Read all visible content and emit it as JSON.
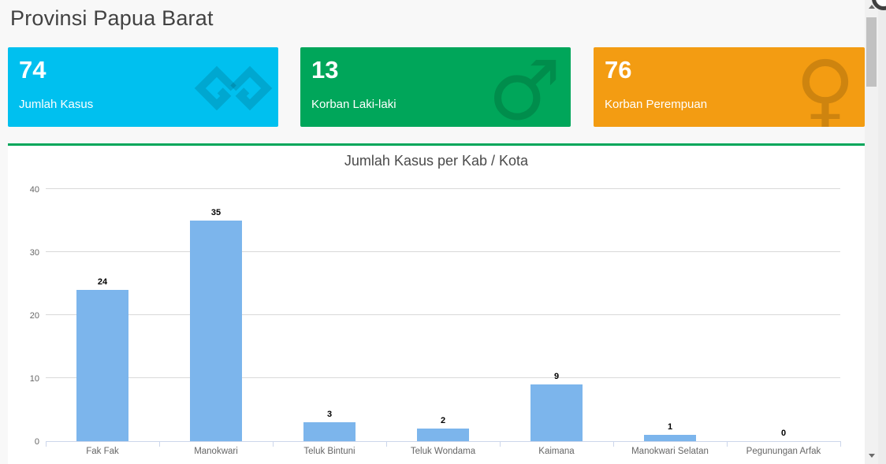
{
  "page": {
    "title": "Provinsi Papua Barat"
  },
  "stat_cards": [
    {
      "value": "74",
      "label": "Jumlah Kasus",
      "bg": "#00c0ef",
      "icon": "simfoni-logo-icon",
      "glyph": ""
    },
    {
      "value": "13",
      "label": "Korban Laki-laki",
      "bg": "#00a65a",
      "icon": "male-symbol-icon",
      "glyph": "♂"
    },
    {
      "value": "76",
      "label": "Korban Perempuan",
      "bg": "#f39c12",
      "icon": "female-symbol-icon",
      "glyph": "♀"
    }
  ],
  "chart_data": {
    "type": "bar",
    "title": "Jumlah Kasus per Kab / Kota",
    "categories": [
      "Fak Fak",
      "Manokwari",
      "Teluk Bintuni",
      "Teluk Wondama",
      "Kaimana",
      "Manokwari Selatan",
      "Pegunungan Arfak"
    ],
    "values": [
      24,
      35,
      3,
      2,
      9,
      1,
      0
    ],
    "xlabel": "",
    "ylabel": "",
    "ylim": [
      0,
      40
    ],
    "yticks": [
      0,
      10,
      20,
      30,
      40
    ],
    "grid": true,
    "legend": false,
    "data_labels": true,
    "bar_color": "#7cb5ec"
  },
  "theme": {
    "accent_green": "#00a65a",
    "page_bg": "#f8f8f8",
    "panel_bg": "#ffffff"
  }
}
